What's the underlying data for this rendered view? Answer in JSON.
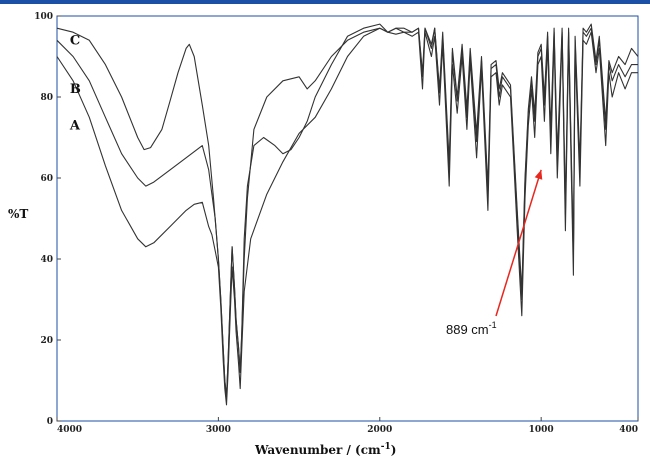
{
  "chart_data": {
    "type": "line",
    "title": "",
    "xlabel": "Wavenumber / (cm",
    "xlabel_sup": "-1",
    "xlabel_close": ")",
    "ylabel": "%T",
    "xlim": [
      4000,
      400
    ],
    "ylim": [
      0,
      100
    ],
    "grid": false,
    "colors": {
      "frame": "#1c4fa6",
      "line": "#333333",
      "arrow": "#e8271f"
    },
    "xticks": [
      {
        "value": 4000,
        "label": "4000"
      },
      {
        "value": 3000,
        "label": "3000"
      },
      {
        "value": 2000,
        "label": "2000"
      },
      {
        "value": 1000,
        "label": "1000"
      },
      {
        "value": 400,
        "label": "400"
      }
    ],
    "yticks": [
      {
        "value": 0,
        "label": "0"
      },
      {
        "value": 20,
        "label": "20"
      },
      {
        "value": 40,
        "label": "40"
      },
      {
        "value": 60,
        "label": "60"
      },
      {
        "value": 80,
        "label": "80"
      },
      {
        "value": 100,
        "label": "100"
      }
    ],
    "series": [
      {
        "name": "A",
        "label_at": [
          3920,
          72
        ],
        "points": [
          [
            4000,
            90
          ],
          [
            3900,
            84
          ],
          [
            3800,
            75
          ],
          [
            3700,
            63
          ],
          [
            3600,
            52
          ],
          [
            3500,
            45
          ],
          [
            3450,
            43
          ],
          [
            3400,
            44
          ],
          [
            3300,
            48
          ],
          [
            3200,
            52
          ],
          [
            3150,
            53.5
          ],
          [
            3100,
            54
          ],
          [
            3060,
            48
          ],
          [
            3040,
            46
          ],
          [
            3020,
            42
          ],
          [
            3000,
            38
          ],
          [
            2985,
            28
          ],
          [
            2970,
            15
          ],
          [
            2960,
            8
          ],
          [
            2950,
            4
          ],
          [
            2940,
            12
          ],
          [
            2925,
            28
          ],
          [
            2915,
            38
          ],
          [
            2900,
            30
          ],
          [
            2890,
            22
          ],
          [
            2875,
            14
          ],
          [
            2865,
            8
          ],
          [
            2855,
            18
          ],
          [
            2840,
            32
          ],
          [
            2800,
            45
          ],
          [
            2700,
            56
          ],
          [
            2600,
            64
          ],
          [
            2500,
            71
          ],
          [
            2400,
            75
          ],
          [
            2300,
            82
          ],
          [
            2200,
            90
          ],
          [
            2100,
            95
          ],
          [
            2000,
            97
          ],
          [
            1950,
            96
          ],
          [
            1900,
            95.5
          ],
          [
            1850,
            96
          ],
          [
            1800,
            95
          ],
          [
            1760,
            96
          ],
          [
            1735,
            82
          ],
          [
            1720,
            96
          ],
          [
            1680,
            90
          ],
          [
            1660,
            95
          ],
          [
            1630,
            78
          ],
          [
            1610,
            93
          ],
          [
            1570,
            58
          ],
          [
            1550,
            88
          ],
          [
            1520,
            76
          ],
          [
            1490,
            90
          ],
          [
            1460,
            72
          ],
          [
            1440,
            89
          ],
          [
            1400,
            65
          ],
          [
            1370,
            87
          ],
          [
            1330,
            52
          ],
          [
            1310,
            85
          ],
          [
            1280,
            86
          ],
          [
            1260,
            78
          ],
          [
            1240,
            83
          ],
          [
            1190,
            80
          ],
          [
            1150,
            48
          ],
          [
            1120,
            26
          ],
          [
            1100,
            55
          ],
          [
            1080,
            73
          ],
          [
            1060,
            82
          ],
          [
            1040,
            70
          ],
          [
            1020,
            88
          ],
          [
            1000,
            90
          ],
          [
            980,
            74
          ],
          [
            960,
            93
          ],
          [
            940,
            66
          ],
          [
            920,
            94
          ],
          [
            900,
            60
          ],
          [
            889,
            72
          ],
          [
            870,
            95
          ],
          [
            850,
            47
          ],
          [
            830,
            94
          ],
          [
            800,
            36
          ],
          [
            790,
            92
          ],
          [
            760,
            58
          ],
          [
            740,
            94
          ],
          [
            720,
            93
          ],
          [
            690,
            96
          ],
          [
            660,
            86
          ],
          [
            640,
            92
          ],
          [
            600,
            68
          ],
          [
            580,
            86
          ],
          [
            560,
            80
          ],
          [
            520,
            86
          ],
          [
            480,
            82
          ],
          [
            440,
            86
          ],
          [
            400,
            86
          ]
        ]
      },
      {
        "name": "B",
        "label_at": [
          3920,
          81
        ],
        "points": [
          [
            4000,
            94
          ],
          [
            3900,
            90
          ],
          [
            3800,
            84
          ],
          [
            3700,
            75
          ],
          [
            3600,
            66
          ],
          [
            3500,
            60
          ],
          [
            3450,
            58
          ],
          [
            3400,
            59
          ],
          [
            3300,
            62
          ],
          [
            3200,
            65
          ],
          [
            3150,
            66.5
          ],
          [
            3100,
            68
          ],
          [
            3060,
            62
          ],
          [
            3040,
            56
          ],
          [
            3020,
            50
          ],
          [
            3000,
            40
          ],
          [
            2985,
            30
          ],
          [
            2970,
            18
          ],
          [
            2960,
            10
          ],
          [
            2950,
            6
          ],
          [
            2940,
            15
          ],
          [
            2925,
            32
          ],
          [
            2915,
            43
          ],
          [
            2900,
            33
          ],
          [
            2890,
            25
          ],
          [
            2875,
            18
          ],
          [
            2865,
            12
          ],
          [
            2855,
            22
          ],
          [
            2840,
            40
          ],
          [
            2820,
            55
          ],
          [
            2780,
            72
          ],
          [
            2700,
            80
          ],
          [
            2600,
            84
          ],
          [
            2500,
            85
          ],
          [
            2450,
            82
          ],
          [
            2400,
            84
          ],
          [
            2300,
            90
          ],
          [
            2200,
            94
          ],
          [
            2100,
            96
          ],
          [
            2000,
            97
          ],
          [
            1950,
            96
          ],
          [
            1900,
            97
          ],
          [
            1850,
            96
          ],
          [
            1800,
            96
          ],
          [
            1760,
            97
          ],
          [
            1735,
            85
          ],
          [
            1720,
            97
          ],
          [
            1680,
            92
          ],
          [
            1660,
            97
          ],
          [
            1630,
            81
          ],
          [
            1610,
            95
          ],
          [
            1570,
            62
          ],
          [
            1550,
            91
          ],
          [
            1520,
            79
          ],
          [
            1490,
            92
          ],
          [
            1460,
            75
          ],
          [
            1440,
            91
          ],
          [
            1400,
            69
          ],
          [
            1370,
            89
          ],
          [
            1330,
            56
          ],
          [
            1310,
            87
          ],
          [
            1280,
            88
          ],
          [
            1260,
            80
          ],
          [
            1240,
            85
          ],
          [
            1190,
            82
          ],
          [
            1150,
            52
          ],
          [
            1120,
            30
          ],
          [
            1100,
            59
          ],
          [
            1080,
            76
          ],
          [
            1060,
            84
          ],
          [
            1040,
            74
          ],
          [
            1020,
            90
          ],
          [
            1000,
            92
          ],
          [
            980,
            78
          ],
          [
            960,
            95
          ],
          [
            940,
            70
          ],
          [
            920,
            96
          ],
          [
            900,
            64
          ],
          [
            889,
            75
          ],
          [
            870,
            96
          ],
          [
            850,
            51
          ],
          [
            830,
            96
          ],
          [
            800,
            40
          ],
          [
            790,
            94
          ],
          [
            760,
            62
          ],
          [
            740,
            96
          ],
          [
            720,
            95
          ],
          [
            690,
            97
          ],
          [
            660,
            88
          ],
          [
            640,
            94
          ],
          [
            600,
            72
          ],
          [
            580,
            88
          ],
          [
            560,
            84
          ],
          [
            520,
            88
          ],
          [
            480,
            85
          ],
          [
            440,
            88
          ],
          [
            400,
            88
          ]
        ]
      },
      {
        "name": "C",
        "label_at": [
          3920,
          93
        ],
        "points": [
          [
            4000,
            97
          ],
          [
            3900,
            96
          ],
          [
            3800,
            94
          ],
          [
            3700,
            88
          ],
          [
            3600,
            80
          ],
          [
            3500,
            70
          ],
          [
            3460,
            67
          ],
          [
            3420,
            67.5
          ],
          [
            3350,
            72
          ],
          [
            3300,
            79
          ],
          [
            3250,
            86
          ],
          [
            3200,
            92
          ],
          [
            3180,
            93
          ],
          [
            3150,
            90
          ],
          [
            3100,
            78
          ],
          [
            3060,
            68
          ],
          [
            3030,
            55
          ],
          [
            3000,
            40
          ],
          [
            2985,
            30
          ],
          [
            2970,
            18
          ],
          [
            2960,
            10
          ],
          [
            2950,
            6
          ],
          [
            2940,
            15
          ],
          [
            2925,
            32
          ],
          [
            2915,
            43
          ],
          [
            2900,
            33
          ],
          [
            2890,
            25
          ],
          [
            2875,
            18
          ],
          [
            2865,
            12
          ],
          [
            2855,
            22
          ],
          [
            2840,
            45
          ],
          [
            2820,
            58
          ],
          [
            2780,
            68
          ],
          [
            2720,
            70
          ],
          [
            2650,
            68
          ],
          [
            2600,
            66
          ],
          [
            2550,
            67
          ],
          [
            2500,
            70
          ],
          [
            2450,
            74
          ],
          [
            2400,
            80
          ],
          [
            2300,
            88
          ],
          [
            2200,
            95
          ],
          [
            2100,
            97
          ],
          [
            2000,
            98
          ],
          [
            1950,
            96
          ],
          [
            1900,
            97
          ],
          [
            1850,
            97
          ],
          [
            1800,
            96
          ],
          [
            1760,
            97
          ],
          [
            1735,
            86
          ],
          [
            1720,
            97
          ],
          [
            1680,
            93
          ],
          [
            1660,
            97
          ],
          [
            1630,
            82
          ],
          [
            1610,
            96
          ],
          [
            1570,
            64
          ],
          [
            1550,
            92
          ],
          [
            1520,
            80
          ],
          [
            1490,
            93
          ],
          [
            1460,
            77
          ],
          [
            1440,
            92
          ],
          [
            1400,
            71
          ],
          [
            1370,
            90
          ],
          [
            1330,
            58
          ],
          [
            1310,
            88
          ],
          [
            1280,
            89
          ],
          [
            1260,
            82
          ],
          [
            1240,
            86
          ],
          [
            1190,
            83
          ],
          [
            1150,
            53
          ],
          [
            1120,
            32
          ],
          [
            1100,
            60
          ],
          [
            1080,
            77
          ],
          [
            1060,
            85
          ],
          [
            1040,
            76
          ],
          [
            1020,
            91
          ],
          [
            1000,
            93
          ],
          [
            980,
            80
          ],
          [
            960,
            96
          ],
          [
            940,
            72
          ],
          [
            920,
            97
          ],
          [
            900,
            66
          ],
          [
            889,
            77
          ],
          [
            870,
            97
          ],
          [
            850,
            53
          ],
          [
            830,
            97
          ],
          [
            800,
            42
          ],
          [
            790,
            95
          ],
          [
            760,
            64
          ],
          [
            740,
            97
          ],
          [
            720,
            96
          ],
          [
            690,
            98
          ],
          [
            660,
            89
          ],
          [
            640,
            95
          ],
          [
            600,
            74
          ],
          [
            580,
            89
          ],
          [
            560,
            86
          ],
          [
            520,
            90
          ],
          [
            480,
            88
          ],
          [
            440,
            92
          ],
          [
            400,
            90
          ]
        ]
      }
    ],
    "annotation": {
      "text": "889 cm",
      "sup": "-1",
      "target": [
        1000,
        62
      ]
    }
  }
}
